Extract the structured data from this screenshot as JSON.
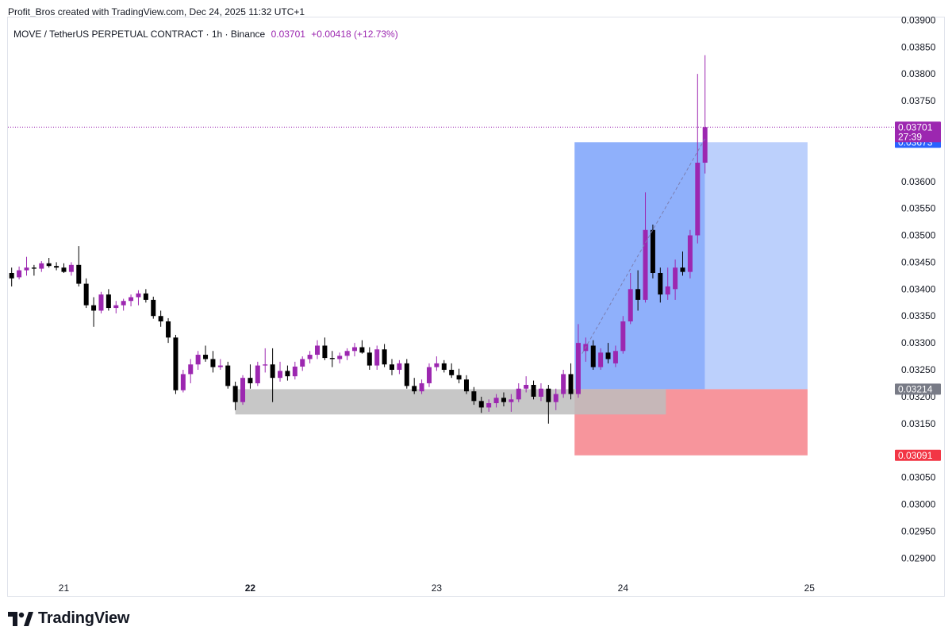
{
  "header": {
    "credit": "Profit_Bros created with TradingView.com, Dec 24, 2025 11:32 UTC+1"
  },
  "legend": {
    "symbol": "MOVE / TetherUS PERPETUAL CONTRACT · 1h · Binance",
    "price": "0.03701",
    "change": "+0.00418 (+12.73%)"
  },
  "footer": {
    "brand": "TradingView",
    "logo_icon": "tradingview-logo-icon"
  },
  "colors": {
    "up": "#9c27b0",
    "down": "#000000",
    "target_zone": "#8fb0fb",
    "target_zone_light": "#bcd0fc",
    "stop_zone": "#f7959c",
    "support_zone": "#bdbdbd",
    "price_line": "#9c27b0",
    "entry_badge": "#787b86",
    "target_badge": "#2962ff",
    "stop_badge": "#f23645"
  },
  "chart_data": {
    "type": "candlestick",
    "timeframe": "1h",
    "ylim": [
      0.02865,
      0.03905
    ],
    "yticks": [
      "0.02900",
      "0.02950",
      "0.03000",
      "0.03050",
      "0.03150",
      "0.03200",
      "0.03250",
      "0.03300",
      "0.03350",
      "0.03400",
      "0.03450",
      "0.03500",
      "0.03550",
      "0.03600",
      "0.03750",
      "0.03800",
      "0.03850",
      "0.03900"
    ],
    "xlim": [
      20.7,
      25.45
    ],
    "xticks": [
      {
        "label": "21",
        "value": 21.0,
        "bold": false
      },
      {
        "label": "22",
        "value": 22.0,
        "bold": true
      },
      {
        "label": "23",
        "value": 23.0,
        "bold": false
      },
      {
        "label": "24",
        "value": 24.0,
        "bold": false
      },
      {
        "label": "25",
        "value": 25.0,
        "bold": false
      }
    ],
    "current_price": {
      "value": 0.03701,
      "label": "0.03701",
      "countdown": "27:39"
    },
    "position": {
      "x_start": 23.74,
      "x_end": 24.99,
      "entry": 0.03214,
      "entry_label": "0.03214",
      "target": 0.03673,
      "target_label": "0.03673",
      "stop": 0.03091,
      "stop_label": "0.03091",
      "filled_until": 24.44
    },
    "support_zone": {
      "x_start": 21.92,
      "x_end": 24.23,
      "top": 0.03214,
      "bottom": 0.03167
    },
    "trend_line": [
      [
        23.78,
        0.0328
      ],
      [
        24.44,
        0.0368
      ]
    ],
    "candles": [
      {
        "t": 20.72,
        "o": 0.0343,
        "h": 0.0344,
        "l": 0.03405,
        "c": 0.0342
      },
      {
        "t": 20.76,
        "o": 0.03422,
        "h": 0.03442,
        "l": 0.03418,
        "c": 0.03435
      },
      {
        "t": 20.8,
        "o": 0.03435,
        "h": 0.0346,
        "l": 0.03425,
        "c": 0.0344
      },
      {
        "t": 20.84,
        "o": 0.0344,
        "h": 0.03445,
        "l": 0.03425,
        "c": 0.03438
      },
      {
        "t": 20.88,
        "o": 0.03438,
        "h": 0.03452,
        "l": 0.03432,
        "c": 0.03448
      },
      {
        "t": 20.92,
        "o": 0.03448,
        "h": 0.03458,
        "l": 0.0344,
        "c": 0.03443
      },
      {
        "t": 20.96,
        "o": 0.03443,
        "h": 0.0345,
        "l": 0.03435,
        "c": 0.0344
      },
      {
        "t": 21.0,
        "o": 0.0344,
        "h": 0.03448,
        "l": 0.0343,
        "c": 0.03432
      },
      {
        "t": 21.04,
        "o": 0.03432,
        "h": 0.0345,
        "l": 0.03425,
        "c": 0.03445
      },
      {
        "t": 21.08,
        "o": 0.03445,
        "h": 0.0348,
        "l": 0.03405,
        "c": 0.0341
      },
      {
        "t": 21.12,
        "o": 0.0341,
        "h": 0.0342,
        "l": 0.03365,
        "c": 0.0337
      },
      {
        "t": 21.16,
        "o": 0.0337,
        "h": 0.03385,
        "l": 0.0333,
        "c": 0.0336
      },
      {
        "t": 21.2,
        "o": 0.0336,
        "h": 0.03395,
        "l": 0.03355,
        "c": 0.0339
      },
      {
        "t": 21.24,
        "o": 0.0339,
        "h": 0.034,
        "l": 0.0336,
        "c": 0.03365
      },
      {
        "t": 21.28,
        "o": 0.03365,
        "h": 0.03378,
        "l": 0.03355,
        "c": 0.0337
      },
      {
        "t": 21.32,
        "o": 0.0337,
        "h": 0.03382,
        "l": 0.0336,
        "c": 0.03378
      },
      {
        "t": 21.36,
        "o": 0.03378,
        "h": 0.0339,
        "l": 0.03368,
        "c": 0.03385
      },
      {
        "t": 21.4,
        "o": 0.03385,
        "h": 0.03398,
        "l": 0.0337,
        "c": 0.03392
      },
      {
        "t": 21.44,
        "o": 0.03392,
        "h": 0.034,
        "l": 0.03375,
        "c": 0.0338
      },
      {
        "t": 21.48,
        "o": 0.0338,
        "h": 0.03386,
        "l": 0.03345,
        "c": 0.0335
      },
      {
        "t": 21.52,
        "o": 0.0335,
        "h": 0.0336,
        "l": 0.0333,
        "c": 0.0334
      },
      {
        "t": 21.56,
        "o": 0.0334,
        "h": 0.03346,
        "l": 0.033,
        "c": 0.0331
      },
      {
        "t": 21.6,
        "o": 0.0331,
        "h": 0.03315,
        "l": 0.03205,
        "c": 0.03212
      },
      {
        "t": 21.64,
        "o": 0.03212,
        "h": 0.0325,
        "l": 0.03208,
        "c": 0.03242
      },
      {
        "t": 21.68,
        "o": 0.03242,
        "h": 0.0327,
        "l": 0.03225,
        "c": 0.0326
      },
      {
        "t": 21.72,
        "o": 0.0326,
        "h": 0.03285,
        "l": 0.0325,
        "c": 0.03278
      },
      {
        "t": 21.76,
        "o": 0.03278,
        "h": 0.03295,
        "l": 0.03265,
        "c": 0.0327
      },
      {
        "t": 21.8,
        "o": 0.0327,
        "h": 0.03285,
        "l": 0.03245,
        "c": 0.03255
      },
      {
        "t": 21.84,
        "o": 0.03255,
        "h": 0.0327,
        "l": 0.0325,
        "c": 0.03258
      },
      {
        "t": 21.88,
        "o": 0.03258,
        "h": 0.03265,
        "l": 0.03215,
        "c": 0.0322
      },
      {
        "t": 21.92,
        "o": 0.0322,
        "h": 0.03228,
        "l": 0.03175,
        "c": 0.0319
      },
      {
        "t": 21.96,
        "o": 0.0319,
        "h": 0.0324,
        "l": 0.03185,
        "c": 0.03235
      },
      {
        "t": 22.0,
        "o": 0.03235,
        "h": 0.0326,
        "l": 0.03215,
        "c": 0.03225
      },
      {
        "t": 22.04,
        "o": 0.03225,
        "h": 0.03265,
        "l": 0.0322,
        "c": 0.03258
      },
      {
        "t": 22.08,
        "o": 0.03258,
        "h": 0.0329,
        "l": 0.03245,
        "c": 0.0326
      },
      {
        "t": 22.12,
        "o": 0.0326,
        "h": 0.0329,
        "l": 0.0319,
        "c": 0.03235
      },
      {
        "t": 22.16,
        "o": 0.03235,
        "h": 0.03265,
        "l": 0.03228,
        "c": 0.03248
      },
      {
        "t": 22.2,
        "o": 0.03248,
        "h": 0.03258,
        "l": 0.0323,
        "c": 0.03238
      },
      {
        "t": 22.24,
        "o": 0.03238,
        "h": 0.03265,
        "l": 0.03232,
        "c": 0.03256
      },
      {
        "t": 22.28,
        "o": 0.03256,
        "h": 0.03275,
        "l": 0.03248,
        "c": 0.0327
      },
      {
        "t": 22.32,
        "o": 0.0327,
        "h": 0.03285,
        "l": 0.03262,
        "c": 0.03278
      },
      {
        "t": 22.36,
        "o": 0.03278,
        "h": 0.03305,
        "l": 0.0327,
        "c": 0.03295
      },
      {
        "t": 22.4,
        "o": 0.03295,
        "h": 0.0331,
        "l": 0.03268,
        "c": 0.03272
      },
      {
        "t": 22.44,
        "o": 0.03272,
        "h": 0.03285,
        "l": 0.03255,
        "c": 0.0327
      },
      {
        "t": 22.48,
        "o": 0.0327,
        "h": 0.03282,
        "l": 0.03262,
        "c": 0.03276
      },
      {
        "t": 22.52,
        "o": 0.03276,
        "h": 0.0329,
        "l": 0.03268,
        "c": 0.03285
      },
      {
        "t": 22.56,
        "o": 0.03285,
        "h": 0.033,
        "l": 0.03275,
        "c": 0.03292
      },
      {
        "t": 22.6,
        "o": 0.03292,
        "h": 0.03305,
        "l": 0.0328,
        "c": 0.03282
      },
      {
        "t": 22.64,
        "o": 0.03282,
        "h": 0.03292,
        "l": 0.0325,
        "c": 0.03258
      },
      {
        "t": 22.68,
        "o": 0.03258,
        "h": 0.03295,
        "l": 0.0325,
        "c": 0.03288
      },
      {
        "t": 22.72,
        "o": 0.03288,
        "h": 0.03298,
        "l": 0.03255,
        "c": 0.0326
      },
      {
        "t": 22.76,
        "o": 0.0326,
        "h": 0.0327,
        "l": 0.0324,
        "c": 0.0325
      },
      {
        "t": 22.8,
        "o": 0.0325,
        "h": 0.03268,
        "l": 0.03242,
        "c": 0.03262
      },
      {
        "t": 22.84,
        "o": 0.03262,
        "h": 0.0327,
        "l": 0.03215,
        "c": 0.0322
      },
      {
        "t": 22.88,
        "o": 0.0322,
        "h": 0.03235,
        "l": 0.03205,
        "c": 0.0321
      },
      {
        "t": 22.92,
        "o": 0.0321,
        "h": 0.03232,
        "l": 0.03205,
        "c": 0.03225
      },
      {
        "t": 22.96,
        "o": 0.03225,
        "h": 0.03262,
        "l": 0.03218,
        "c": 0.03255
      },
      {
        "t": 23.0,
        "o": 0.03255,
        "h": 0.03275,
        "l": 0.03248,
        "c": 0.03262
      },
      {
        "t": 23.04,
        "o": 0.03262,
        "h": 0.03268,
        "l": 0.03245,
        "c": 0.0325
      },
      {
        "t": 23.08,
        "o": 0.0325,
        "h": 0.03262,
        "l": 0.03235,
        "c": 0.0324
      },
      {
        "t": 23.12,
        "o": 0.0324,
        "h": 0.03252,
        "l": 0.03225,
        "c": 0.03232
      },
      {
        "t": 23.16,
        "o": 0.03232,
        "h": 0.0324,
        "l": 0.03205,
        "c": 0.0321
      },
      {
        "t": 23.2,
        "o": 0.0321,
        "h": 0.03218,
        "l": 0.03185,
        "c": 0.03192
      },
      {
        "t": 23.24,
        "o": 0.03192,
        "h": 0.032,
        "l": 0.0317,
        "c": 0.0318
      },
      {
        "t": 23.28,
        "o": 0.0318,
        "h": 0.03195,
        "l": 0.03172,
        "c": 0.03188
      },
      {
        "t": 23.32,
        "o": 0.03188,
        "h": 0.03205,
        "l": 0.0318,
        "c": 0.03198
      },
      {
        "t": 23.36,
        "o": 0.03198,
        "h": 0.03208,
        "l": 0.03182,
        "c": 0.0319
      },
      {
        "t": 23.4,
        "o": 0.0319,
        "h": 0.03205,
        "l": 0.03172,
        "c": 0.03195
      },
      {
        "t": 23.44,
        "o": 0.03195,
        "h": 0.03225,
        "l": 0.0319,
        "c": 0.03215
      },
      {
        "t": 23.48,
        "o": 0.03215,
        "h": 0.03238,
        "l": 0.03208,
        "c": 0.03222
      },
      {
        "t": 23.52,
        "o": 0.03222,
        "h": 0.0323,
        "l": 0.03195,
        "c": 0.032
      },
      {
        "t": 23.56,
        "o": 0.032,
        "h": 0.03225,
        "l": 0.03192,
        "c": 0.03215
      },
      {
        "t": 23.6,
        "o": 0.03215,
        "h": 0.03222,
        "l": 0.0315,
        "c": 0.0319
      },
      {
        "t": 23.64,
        "o": 0.0319,
        "h": 0.03215,
        "l": 0.03175,
        "c": 0.03205
      },
      {
        "t": 23.68,
        "o": 0.03205,
        "h": 0.0325,
        "l": 0.03198,
        "c": 0.03242
      },
      {
        "t": 23.72,
        "o": 0.03242,
        "h": 0.03262,
        "l": 0.03195,
        "c": 0.03205
      },
      {
        "t": 23.76,
        "o": 0.03205,
        "h": 0.03335,
        "l": 0.03198,
        "c": 0.033
      },
      {
        "t": 23.8,
        "o": 0.03285,
        "h": 0.0331,
        "l": 0.03265,
        "c": 0.03298
      },
      {
        "t": 23.84,
        "o": 0.03295,
        "h": 0.03305,
        "l": 0.0325,
        "c": 0.03255
      },
      {
        "t": 23.88,
        "o": 0.03255,
        "h": 0.0329,
        "l": 0.0325,
        "c": 0.03282
      },
      {
        "t": 23.92,
        "o": 0.03282,
        "h": 0.033,
        "l": 0.03262,
        "c": 0.0327
      },
      {
        "t": 23.96,
        "o": 0.03262,
        "h": 0.03295,
        "l": 0.03255,
        "c": 0.03285
      },
      {
        "t": 24.0,
        "o": 0.03285,
        "h": 0.0335,
        "l": 0.0328,
        "c": 0.0334
      },
      {
        "t": 24.04,
        "o": 0.0334,
        "h": 0.0343,
        "l": 0.03335,
        "c": 0.034
      },
      {
        "t": 24.08,
        "o": 0.034,
        "h": 0.03435,
        "l": 0.0336,
        "c": 0.0338
      },
      {
        "t": 24.12,
        "o": 0.0338,
        "h": 0.0358,
        "l": 0.03375,
        "c": 0.0351
      },
      {
        "t": 24.16,
        "o": 0.0351,
        "h": 0.0352,
        "l": 0.0342,
        "c": 0.0343
      },
      {
        "t": 24.2,
        "o": 0.0343,
        "h": 0.0344,
        "l": 0.03375,
        "c": 0.0339
      },
      {
        "t": 24.24,
        "o": 0.0339,
        "h": 0.0344,
        "l": 0.0338,
        "c": 0.03405
      },
      {
        "t": 24.28,
        "o": 0.034,
        "h": 0.03455,
        "l": 0.0338,
        "c": 0.0344
      },
      {
        "t": 24.32,
        "o": 0.0344,
        "h": 0.0347,
        "l": 0.03425,
        "c": 0.03432
      },
      {
        "t": 24.36,
        "o": 0.03432,
        "h": 0.0351,
        "l": 0.0342,
        "c": 0.035
      },
      {
        "t": 24.4,
        "o": 0.035,
        "h": 0.038,
        "l": 0.03485,
        "c": 0.03635
      },
      {
        "t": 24.44,
        "o": 0.03635,
        "h": 0.03835,
        "l": 0.03615,
        "c": 0.03701
      }
    ]
  }
}
